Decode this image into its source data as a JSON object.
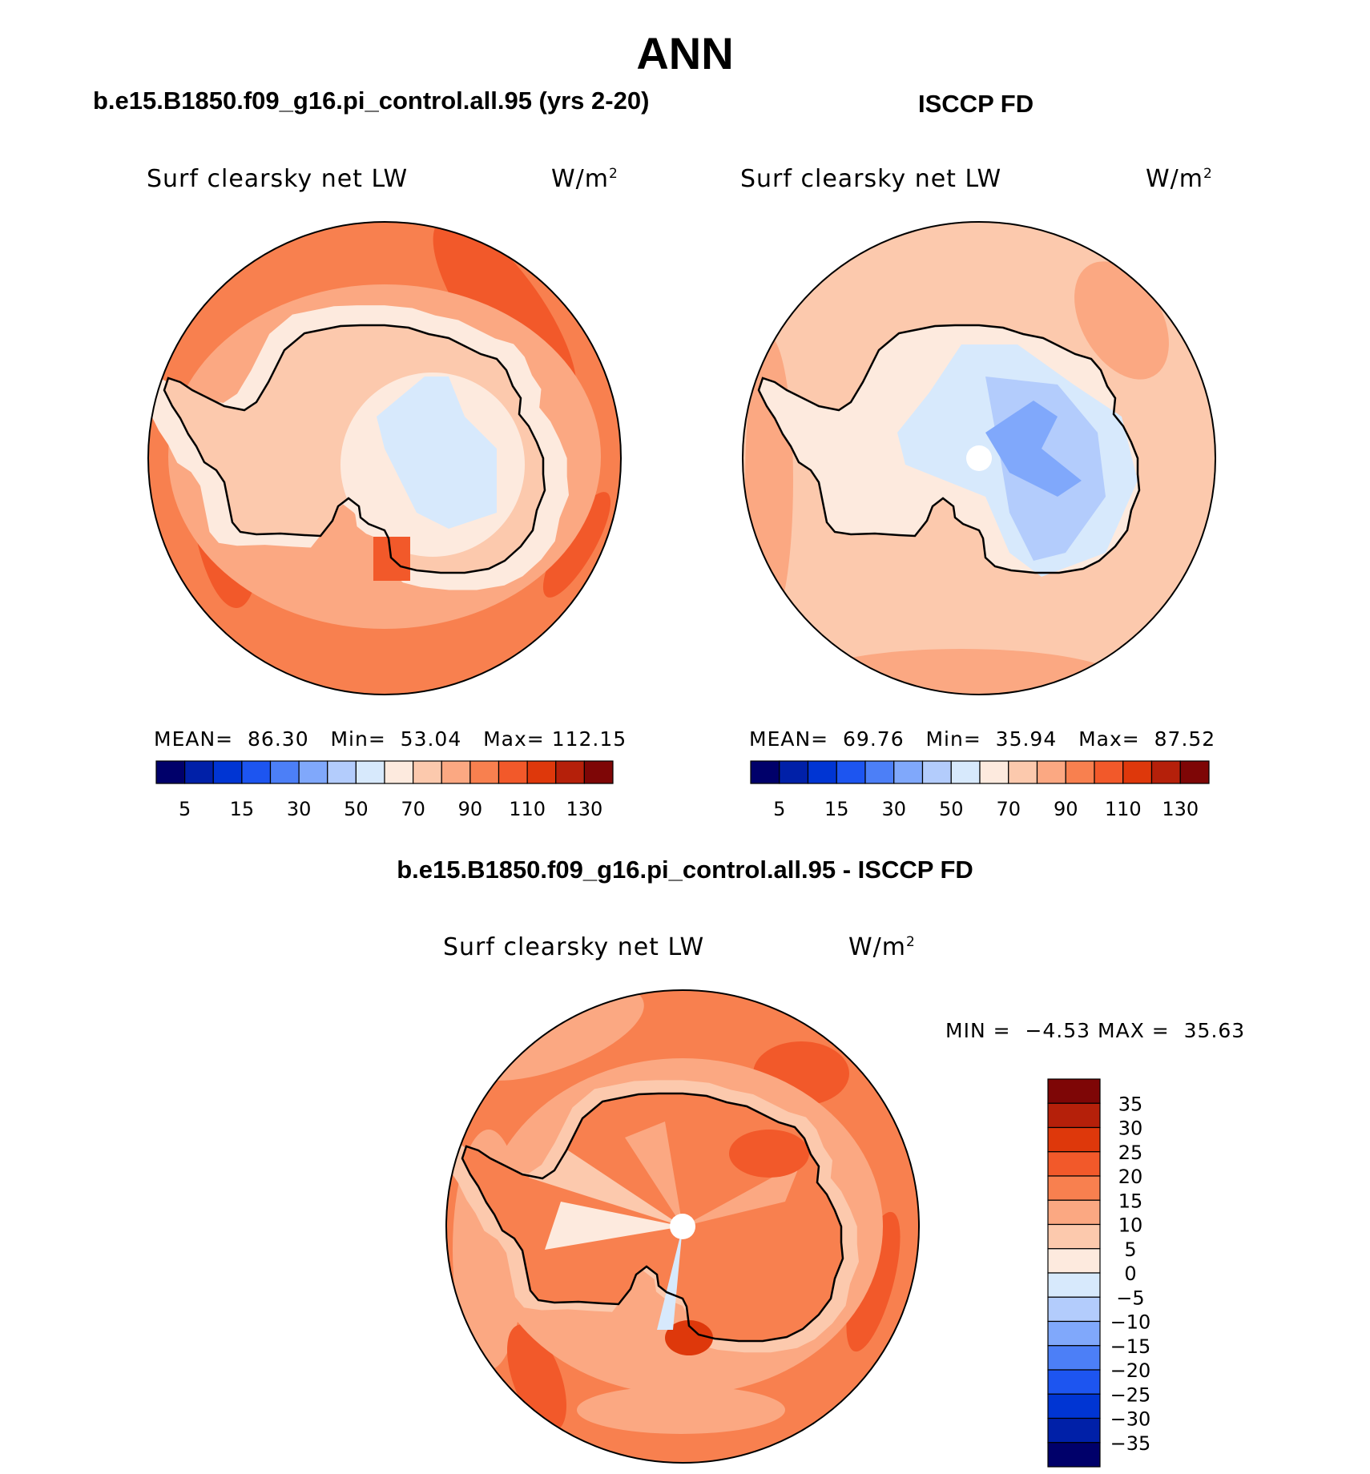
{
  "main_title": "ANN",
  "panels": [
    {
      "title": "b.e15.B1850.f09_g16.pi_control.all.95 (yrs 2-20)",
      "variable": "Surf clearsky net LW",
      "units": "W/m",
      "units_sup": "2",
      "mean_label": "MEAN=",
      "mean": "86.30",
      "min_label": "Min=",
      "min": "53.04",
      "max_label": "Max=",
      "max": "112.15"
    },
    {
      "title": "ISCCP FD",
      "variable": "Surf clearsky net LW",
      "units": "W/m",
      "units_sup": "2",
      "mean_label": "MEAN=",
      "mean": "69.76",
      "min_label": "Min=",
      "min": "35.94",
      "max_label": "Max=",
      "max": "87.52"
    }
  ],
  "diff": {
    "title": "b.e15.B1850.f09_g16.pi_control.all.95 - ISCCP FD",
    "variable": "Surf clearsky net LW",
    "units": "W/m",
    "units_sup": "2",
    "min_label": "MIN =",
    "min": "−4.53",
    "max_label": "MAX =",
    "max": "35.63"
  },
  "colorbar_top": {
    "colors": [
      "#00006a",
      "#0020a8",
      "#0035d3",
      "#1d55f0",
      "#4c7ff7",
      "#80a8fb",
      "#b3ccfc",
      "#d7e9fc",
      "#fdeade",
      "#fcc9ad",
      "#fba882",
      "#f8804f",
      "#f2592a",
      "#de380b",
      "#b5200a",
      "#7e0606"
    ],
    "tick_labels": [
      "5",
      "15",
      "30",
      "50",
      "70",
      "90",
      "110",
      "130"
    ]
  },
  "colorbar_diff": {
    "colors": [
      "#7e0606",
      "#b5200a",
      "#de380b",
      "#f2592a",
      "#f8804f",
      "#fba882",
      "#fcc9ad",
      "#fdeade",
      "#d7e9fc",
      "#b3ccfc",
      "#80a8fb",
      "#4c7ff7",
      "#1d55f0",
      "#0035d3",
      "#0020a8",
      "#00006a"
    ],
    "tick_labels": [
      "35",
      "30",
      "25",
      "20",
      "15",
      "10",
      "5",
      "0",
      "−5",
      "−10",
      "−15",
      "−20",
      "−25",
      "−30",
      "−35"
    ]
  },
  "map_fill_colors": {
    "ocean_model": "#f8804f",
    "ocean_obs": "#fcc9ad",
    "ocean_diff": "#f8804f",
    "coast": "#000000"
  }
}
